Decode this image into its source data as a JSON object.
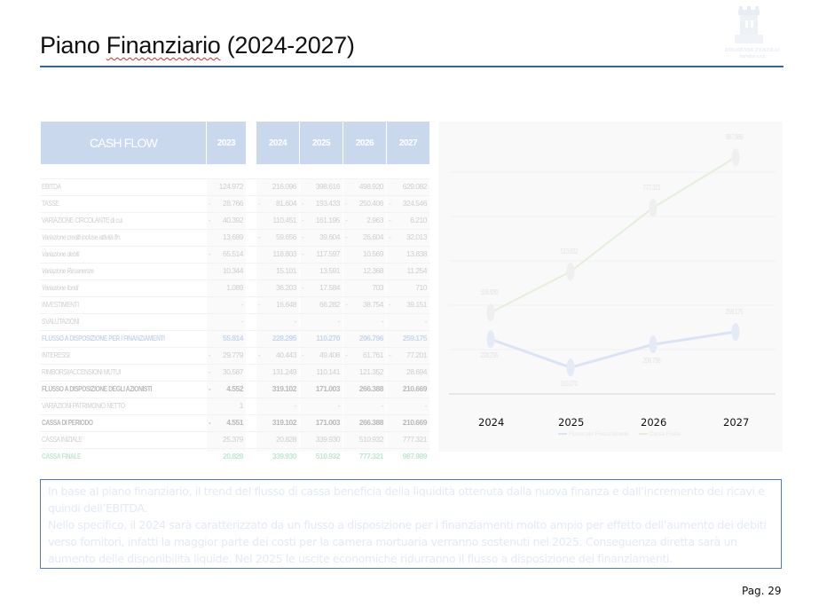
{
  "header": {
    "title_prefix": "Piano ",
    "title_misspelled": "Finanziario",
    "title_suffix": " (2024-2027)",
    "logo_text_line1": "RHODENSE FUNERAL",
    "logo_text_line2": "Service s.r.l."
  },
  "table": {
    "title": "CASH FLOW",
    "years": [
      "2023",
      "2024",
      "2025",
      "2026",
      "2027"
    ],
    "rows": [
      {
        "label": "EBITDA",
        "style": "normal",
        "values": [
          "124.972",
          "216.096",
          "398.616",
          "498.920",
          "629.082"
        ],
        "neg": [
          false,
          false,
          false,
          false,
          false
        ]
      },
      {
        "label": "TASSE",
        "style": "normal",
        "values": [
          "28.766",
          "81.604",
          "193.433",
          "250.406",
          "324.546"
        ],
        "neg": [
          true,
          true,
          true,
          true,
          true
        ]
      },
      {
        "label": "VARIAZIONE CIRCOLANTE di cui",
        "style": "normal",
        "values": [
          "40.392",
          "110.451",
          "161.195",
          "2.963",
          "6.210"
        ],
        "neg": [
          true,
          false,
          true,
          true,
          true
        ]
      },
      {
        "label": "Variazione crediti incluse attività fin.",
        "style": "italic",
        "values": [
          "13.689",
          "59.656",
          "39.604",
          "26.604",
          "32.013"
        ],
        "neg": [
          false,
          true,
          true,
          true,
          true
        ]
      },
      {
        "label": "Variazione debiti",
        "style": "italic",
        "values": [
          "65.514",
          "118.803",
          "117.597",
          "10.569",
          "13.838"
        ],
        "neg": [
          true,
          false,
          true,
          false,
          false
        ]
      },
      {
        "label": "Variazione Rimanenze",
        "style": "italic",
        "values": [
          "10.344",
          "15.101",
          "13.591",
          "12.368",
          "11.254"
        ],
        "neg": [
          false,
          false,
          false,
          false,
          false
        ]
      },
      {
        "label": "Variazione fondi",
        "style": "italic",
        "values": [
          "1.089",
          "36.203",
          "17.584",
          "703",
          "710"
        ],
        "neg": [
          false,
          false,
          true,
          false,
          false
        ]
      },
      {
        "label": "INVESTIMENTI",
        "style": "normal",
        "values": [
          "-",
          "16.648",
          "66.282",
          "38.754",
          "39.151"
        ],
        "neg": [
          false,
          true,
          false,
          true,
          true
        ]
      },
      {
        "label": "SVALUTAZIONI",
        "style": "normal",
        "values": [
          "-",
          "-",
          "-",
          "-",
          "-"
        ],
        "neg": [
          false,
          false,
          false,
          false,
          false
        ]
      },
      {
        "label": "FLUSSO A DISPOSIZIONE PER I FINANZIAMENTI",
        "style": "blue",
        "values": [
          "55.814",
          "228.295",
          "110.270",
          "206.796",
          "259.175"
        ],
        "neg": [
          false,
          false,
          false,
          false,
          false
        ]
      },
      {
        "label": "INTERESSI",
        "style": "normal",
        "values": [
          "29.779",
          "40.443",
          "49.408",
          "61.761",
          "77.201"
        ],
        "neg": [
          true,
          true,
          true,
          true,
          true
        ]
      },
      {
        "label": "RIMBORSI/ACCENSIONI MUTUI",
        "style": "normal",
        "values": [
          "30.587",
          "131.249",
          "110.141",
          "121.352",
          "28.694"
        ],
        "neg": [
          true,
          false,
          false,
          false,
          false
        ]
      },
      {
        "label": "FLUSSO A DISPOSIZIONE DEGLI AZIONISTI",
        "style": "bold",
        "values": [
          "4.552",
          "319.102",
          "171.003",
          "266.388",
          "210.669"
        ],
        "neg": [
          true,
          false,
          false,
          false,
          false
        ]
      },
      {
        "label": "VARIAZIONI PATRIMONIO NETTO",
        "style": "normal",
        "values": [
          "1",
          "-",
          "-",
          "-",
          "-"
        ],
        "neg": [
          false,
          false,
          false,
          false,
          false
        ]
      },
      {
        "label": "CASSA DI PERIODO",
        "style": "bold",
        "values": [
          "4.551",
          "319.102",
          "171.003",
          "266.388",
          "210.669"
        ],
        "neg": [
          true,
          false,
          false,
          false,
          false
        ]
      },
      {
        "label": "CASSA INIZIALE",
        "style": "normal",
        "values": [
          "25.379",
          "20.828",
          "339.930",
          "510.932",
          "777.321"
        ],
        "neg": [
          false,
          false,
          false,
          false,
          false
        ]
      },
      {
        "label": "CASSA FINALE",
        "style": "green",
        "values": [
          "20.828",
          "339.930",
          "510.932",
          "777.321",
          "987.989"
        ],
        "neg": [
          false,
          false,
          false,
          false,
          false
        ]
      }
    ]
  },
  "chart_data": {
    "type": "line",
    "title": "",
    "categories": [
      "2024",
      "2025",
      "2026",
      "2027"
    ],
    "series": [
      {
        "name": "Flusso per Finanziamenti",
        "color": "#dbe4f4",
        "values": [
          228295,
          110270,
          206796,
          259175
        ],
        "labels": [
          "228.295",
          "110.270",
          "206.796",
          "259.175"
        ]
      },
      {
        "name": "Cassa Finale",
        "color": "#e3efdc",
        "values": [
          339930,
          510932,
          777321,
          987989
        ],
        "labels": [
          "339.930",
          "510.932",
          "777.321",
          "987.989"
        ]
      }
    ],
    "xlabel": "",
    "ylabel": "",
    "grid": true,
    "legend_position": "bottom"
  },
  "note": {
    "paragraph1": "In base al piano finanziario, il trend del flusso di cassa beneficia della liquidità ottenuta dalla nuova finanza e dall’incremento dei ricavi e quindi dell’EBITDA.",
    "paragraph2": "Nello specifico, il 2024 sarà caratterizzato da un flusso a disposizione per i finanziamenti molto ampio per effetto dell’aumento dei debiti verso fornitori, infatti la maggior parte dei costi per la camera mortuaria verranno sostenuti nel 2025. Conseguenza diretta sarà un aumento delle disponibilità liquide. Nel 2025 le uscite economiche ridurranno il flusso a disposizione dei finanziamenti."
  },
  "footer": {
    "page_label": "Pag. 29"
  }
}
